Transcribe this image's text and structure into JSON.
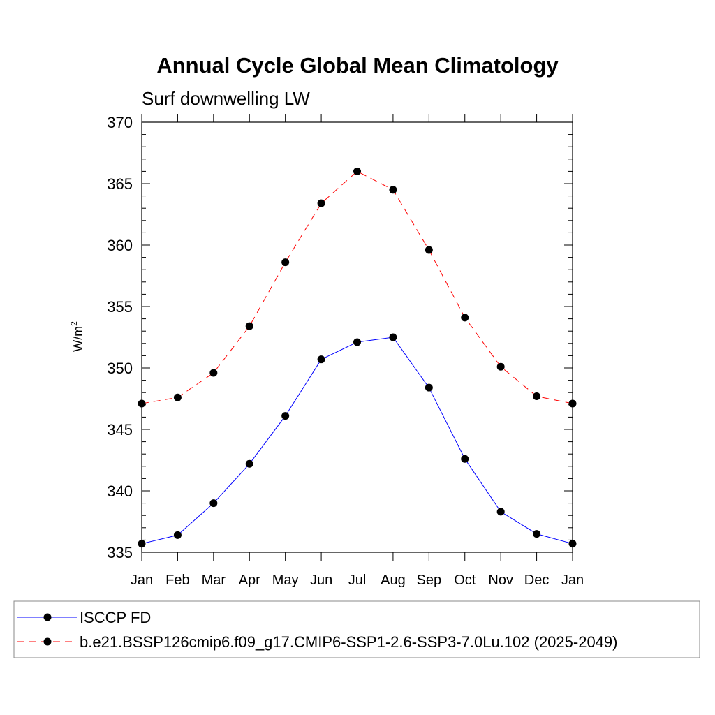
{
  "chart_data": {
    "type": "line",
    "title": "Annual Cycle Global Mean Climatology",
    "subtitle": "Surf downwelling LW",
    "ylabel": "W/m",
    "ylabel_superscript": "2",
    "categories": [
      "Jan",
      "Feb",
      "Mar",
      "Apr",
      "May",
      "Jun",
      "Jul",
      "Aug",
      "Sep",
      "Oct",
      "Nov",
      "Dec",
      "Jan"
    ],
    "ylim": [
      335,
      370
    ],
    "yticks": [
      335,
      340,
      345,
      350,
      355,
      360,
      365,
      370
    ],
    "ytick_labels": [
      "335",
      "340",
      "345",
      "350",
      "355",
      "360",
      "365",
      "370"
    ],
    "grid": false,
    "legend_position": "bottom",
    "series": [
      {
        "name": "ISCCP FD",
        "color": "#0000ff",
        "line_style": "solid",
        "marker": "filled-circle",
        "values": [
          335.7,
          336.4,
          339.0,
          342.2,
          346.1,
          350.7,
          352.1,
          352.5,
          348.4,
          342.6,
          338.3,
          336.5,
          335.7
        ]
      },
      {
        "name": "b.e21.BSSP126cmip6.f09_g17.CMIP6-SSP1-2.6-SSP3-7.0Lu.102 (2025-2049)",
        "color": "#ff0000",
        "line_style": "dashed",
        "marker": "filled-circle",
        "values": [
          347.1,
          347.6,
          349.6,
          353.4,
          358.6,
          363.4,
          366.0,
          364.5,
          359.6,
          354.1,
          350.1,
          347.7,
          347.1
        ]
      }
    ]
  }
}
